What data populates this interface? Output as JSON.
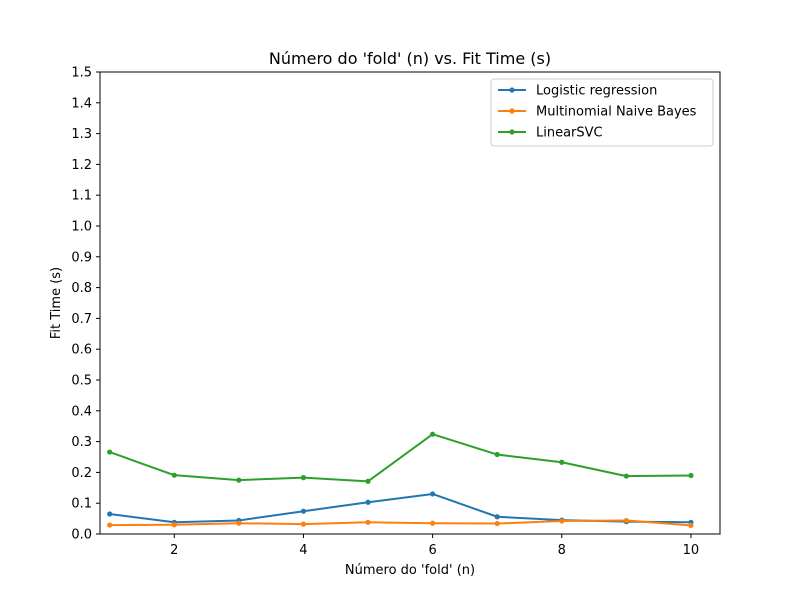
{
  "chart_data": {
    "type": "line",
    "title": "Número do 'fold' (n) vs. Fit Time (s)",
    "xlabel": "Número do 'fold' (n)",
    "ylabel": "Fit Time (s)",
    "x": [
      1,
      2,
      3,
      4,
      5,
      6,
      7,
      8,
      9,
      10
    ],
    "xlim": [
      0.85,
      10.45
    ],
    "ylim": [
      0.0,
      1.5
    ],
    "xticks": [
      2,
      4,
      6,
      8,
      10
    ],
    "xtick_labels": [
      "2",
      "4",
      "6",
      "8",
      "10"
    ],
    "yticks": [
      0.0,
      0.1,
      0.2,
      0.3,
      0.4,
      0.5,
      0.6,
      0.7,
      0.8,
      0.9,
      1.0,
      1.1,
      1.2,
      1.3,
      1.4,
      1.5
    ],
    "ytick_labels": [
      "0.0",
      "0.1",
      "0.2",
      "0.3",
      "0.4",
      "0.5",
      "0.6",
      "0.7",
      "0.8",
      "0.9",
      "1.0",
      "1.1",
      "1.2",
      "1.3",
      "1.4",
      "1.5"
    ],
    "grid": false,
    "legend_position": "top-right",
    "series": [
      {
        "name": "Logistic regression",
        "color": "#1f77b4",
        "values": [
          0.065,
          0.038,
          0.044,
          0.074,
          0.103,
          0.13,
          0.056,
          0.045,
          0.04,
          0.038
        ]
      },
      {
        "name": "Multinomial Naive Bayes",
        "color": "#ff7f0e",
        "values": [
          0.029,
          0.03,
          0.035,
          0.032,
          0.038,
          0.035,
          0.034,
          0.042,
          0.044,
          0.028
        ]
      },
      {
        "name": "LinearSVC",
        "color": "#2ca02c",
        "values": [
          0.266,
          0.191,
          0.175,
          0.183,
          0.171,
          0.324,
          0.258,
          0.233,
          0.188,
          0.19
        ]
      }
    ]
  }
}
